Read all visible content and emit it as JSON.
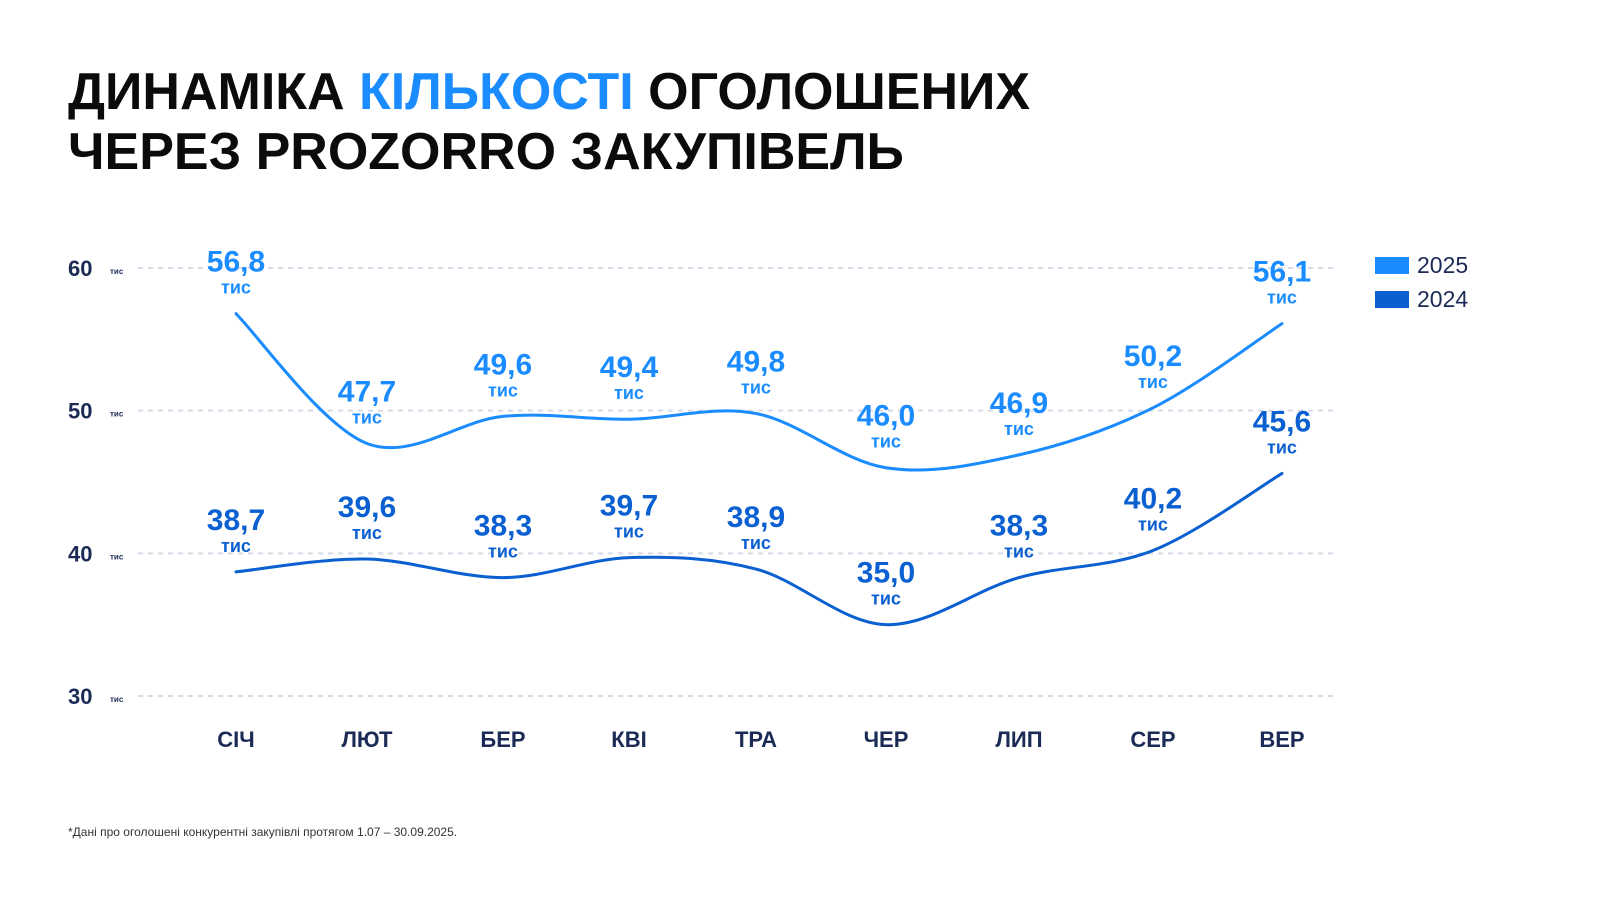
{
  "title": {
    "part1": "ДИНАМІКА ",
    "highlight": "КІЛЬКОСТІ",
    "part2": " ОГОЛОШЕНИХ",
    "line2": "ЧЕРЕЗ PROZORRO ЗАКУПІВЕЛЬ"
  },
  "footnote": "*Дані про оголошені конкурентні закупівлі протягом 1.07 – 30.09.2025.",
  "colors": {
    "series_2025": "#1a8cff",
    "series_2024": "#0a5fd1",
    "axis_text": "#1b2b55",
    "grid": "#d5dae6"
  },
  "chart_data": {
    "type": "line",
    "categories": [
      "СІЧ",
      "ЛЮТ",
      "БЕР",
      "КВІ",
      "ТРА",
      "ЧЕР",
      "ЛИП",
      "СЕР",
      "ВЕР"
    ],
    "y_ticks": [
      {
        "value": 60,
        "label": "60",
        "unit": "тис"
      },
      {
        "value": 50,
        "label": "50",
        "unit": "тис"
      },
      {
        "value": 40,
        "label": "40",
        "unit": "тис"
      },
      {
        "value": 30,
        "label": "30",
        "unit": "тис"
      }
    ],
    "ylim": [
      30,
      60
    ],
    "grid": true,
    "legend_position": "top-right",
    "value_unit": "тис",
    "series": [
      {
        "name": "2025",
        "values": [
          56.8,
          47.7,
          49.6,
          49.4,
          49.8,
          46.0,
          46.9,
          50.2,
          56.1
        ],
        "labels": [
          "56,8",
          "47,7",
          "49,6",
          "49,4",
          "49,8",
          "46,0",
          "46,9",
          "50,2",
          "56,1"
        ]
      },
      {
        "name": "2024",
        "values": [
          38.7,
          39.6,
          38.3,
          39.7,
          38.9,
          35.0,
          38.3,
          40.2,
          45.6
        ],
        "labels": [
          "38,7",
          "39,6",
          "38,3",
          "39,7",
          "38,9",
          "35,0",
          "38,3",
          "40,2",
          "45,6"
        ]
      }
    ]
  }
}
